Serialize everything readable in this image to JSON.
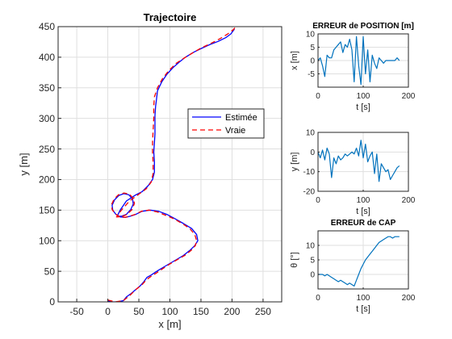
{
  "chart_data": [
    {
      "type": "line",
      "title": "Trajectoire",
      "xlabel": "x [m]",
      "ylabel": "y [m]",
      "xlim": [
        -80,
        280
      ],
      "ylim": [
        0,
        450
      ],
      "xticks": [
        -50,
        0,
        50,
        100,
        150,
        200,
        250
      ],
      "yticks": [
        0,
        50,
        100,
        150,
        200,
        250,
        300,
        350,
        400,
        450
      ],
      "grid": true,
      "legend": "right",
      "series": [
        {
          "name": "Estimée",
          "color": "#0000ff",
          "style": "solid",
          "points": [
            [
              0,
              2
            ],
            [
              5,
              0
            ],
            [
              15,
              0
            ],
            [
              25,
              2
            ],
            [
              30,
              8
            ],
            [
              38,
              14
            ],
            [
              45,
              20
            ],
            [
              52,
              26
            ],
            [
              58,
              33
            ],
            [
              63,
              40
            ],
            [
              70,
              44
            ],
            [
              76,
              48
            ],
            [
              82,
              52
            ],
            [
              92,
              58
            ],
            [
              102,
              64
            ],
            [
              112,
              70
            ],
            [
              122,
              76
            ],
            [
              132,
              84
            ],
            [
              140,
              92
            ],
            [
              145,
              100
            ],
            [
              143,
              110
            ],
            [
              135,
              120
            ],
            [
              122,
              128
            ],
            [
              108,
              136
            ],
            [
              95,
              143
            ],
            [
              82,
              148
            ],
            [
              68,
              150
            ],
            [
              55,
              148
            ],
            [
              45,
              143
            ],
            [
              36,
              140
            ],
            [
              28,
              138
            ],
            [
              20,
              139
            ],
            [
              13,
              143
            ],
            [
              8,
              150
            ],
            [
              7,
              158
            ],
            [
              11,
              167
            ],
            [
              18,
              174
            ],
            [
              26,
              177
            ],
            [
              34,
              175
            ],
            [
              40,
              168
            ],
            [
              41,
              160
            ],
            [
              37,
              151
            ],
            [
              30,
              143
            ],
            [
              22,
              140
            ],
            [
              15,
              140
            ],
            [
              20,
              150
            ],
            [
              30,
              165
            ],
            [
              45,
              175
            ],
            [
              55,
              180
            ],
            [
              65,
              190
            ],
            [
              72,
              200
            ],
            [
              75,
              212
            ],
            [
              75,
              230
            ],
            [
              74,
              245
            ],
            [
              75,
              260
            ],
            [
              76,
              275
            ],
            [
              76,
              290
            ],
            [
              76,
              305
            ],
            [
              77,
              320
            ],
            [
              78,
              328
            ],
            [
              80,
              345
            ],
            [
              87,
              360
            ],
            [
              95,
              372
            ],
            [
              105,
              383
            ],
            [
              115,
              392
            ],
            [
              125,
              400
            ],
            [
              138,
              408
            ],
            [
              152,
              415
            ],
            [
              165,
              421
            ],
            [
              178,
              426
            ],
            [
              190,
              432
            ],
            [
              198,
              438
            ],
            [
              204,
              446
            ]
          ]
        },
        {
          "name": "Vraie",
          "color": "#ff0000",
          "style": "dashed",
          "points": [
            [
              0,
              3
            ],
            [
              12,
              0
            ],
            [
              25,
              2
            ],
            [
              35,
              10
            ],
            [
              45,
              20
            ],
            [
              55,
              28
            ],
            [
              62,
              36
            ],
            [
              70,
              42
            ],
            [
              78,
              47
            ],
            [
              88,
              54
            ],
            [
              100,
              62
            ],
            [
              112,
              69
            ],
            [
              124,
              76
            ],
            [
              134,
              84
            ],
            [
              141,
              92
            ],
            [
              143,
              100
            ],
            [
              140,
              110
            ],
            [
              132,
              120
            ],
            [
              120,
              128
            ],
            [
              106,
              136
            ],
            [
              92,
              142
            ],
            [
              80,
              147
            ],
            [
              66,
              150
            ],
            [
              54,
              148
            ],
            [
              44,
              143
            ],
            [
              35,
              140
            ],
            [
              27,
              138
            ],
            [
              19,
              139
            ],
            [
              12,
              144
            ],
            [
              7,
              151
            ],
            [
              6,
              159
            ],
            [
              10,
              168
            ],
            [
              17,
              175
            ],
            [
              26,
              178
            ],
            [
              35,
              176
            ],
            [
              41,
              169
            ],
            [
              43,
              161
            ],
            [
              39,
              151
            ],
            [
              31,
              143
            ],
            [
              22,
              139
            ],
            [
              14,
              139
            ],
            [
              22,
              150
            ],
            [
              35,
              165
            ],
            [
              50,
              176
            ],
            [
              62,
              185
            ],
            [
              70,
              196
            ],
            [
              73,
              210
            ],
            [
              73,
              228
            ],
            [
              72,
              245
            ],
            [
              72,
              262
            ],
            [
              73,
              280
            ],
            [
              74,
              300
            ],
            [
              74,
              320
            ],
            [
              75,
              335
            ],
            [
              80,
              350
            ],
            [
              88,
              365
            ],
            [
              98,
              378
            ],
            [
              110,
              390
            ],
            [
              122,
              398
            ],
            [
              135,
              406
            ],
            [
              150,
              415
            ],
            [
              165,
              422
            ],
            [
              180,
              430
            ],
            [
              193,
              438
            ],
            [
              202,
              445
            ],
            [
              207,
              451
            ]
          ]
        }
      ]
    },
    {
      "type": "line",
      "title": "ERREUR de POSITION [m]",
      "xlabel": "t [s]",
      "ylabel": "x [m]",
      "xlim": [
        0,
        200
      ],
      "ylim": [
        -10,
        10
      ],
      "xticks": [
        0,
        100,
        200
      ],
      "yticks": [
        -5,
        0,
        5,
        10
      ],
      "grid": true,
      "series": [
        {
          "color": "#0072bd",
          "t": [
            0,
            5,
            10,
            15,
            20,
            25,
            30,
            35,
            40,
            45,
            50,
            55,
            60,
            65,
            70,
            75,
            80,
            85,
            90,
            95,
            100,
            105,
            110,
            115,
            120,
            125,
            130,
            135,
            140,
            145,
            150,
            155,
            160,
            165,
            170,
            175,
            180
          ],
          "values": [
            0,
            1,
            -2,
            -6,
            2,
            1,
            1,
            4,
            5,
            6,
            7,
            3,
            6,
            5,
            8,
            4,
            -8,
            9,
            -2,
            -9,
            9,
            -5,
            4,
            -8,
            2,
            -1,
            -3,
            1,
            0,
            -1,
            0,
            0,
            0,
            0,
            0,
            1,
            0
          ]
        }
      ]
    },
    {
      "type": "line",
      "title": "",
      "xlabel": "t [s]",
      "ylabel": "y [m]",
      "xlim": [
        0,
        200
      ],
      "ylim": [
        -20,
        10
      ],
      "xticks": [
        0,
        100,
        200
      ],
      "yticks": [
        -20,
        -10,
        0,
        10
      ],
      "grid": true,
      "series": [
        {
          "color": "#0072bd",
          "t": [
            0,
            5,
            10,
            15,
            20,
            25,
            30,
            35,
            40,
            45,
            50,
            55,
            60,
            65,
            70,
            75,
            80,
            85,
            90,
            95,
            100,
            105,
            110,
            115,
            120,
            125,
            130,
            135,
            140,
            145,
            150,
            155,
            160,
            165,
            170,
            175,
            180
          ],
          "values": [
            0,
            -3,
            1,
            -4,
            2,
            -1,
            -13,
            -3,
            -6,
            -2,
            -4,
            -3,
            -1,
            -2,
            -1,
            0,
            -1,
            2,
            -2,
            6,
            -3,
            4,
            -5,
            -2,
            0,
            -11,
            -1,
            -15,
            -6,
            -8,
            -10,
            -9,
            -14,
            -12,
            -10,
            -8,
            -7
          ]
        }
      ]
    },
    {
      "type": "line",
      "title": "ERREUR de CAP",
      "xlabel": "t [s]",
      "ylabel": "θ [°]",
      "xlim": [
        0,
        200
      ],
      "ylim": [
        -5,
        15
      ],
      "xticks": [
        0,
        100,
        200
      ],
      "yticks": [
        0,
        5,
        10
      ],
      "grid": true,
      "series": [
        {
          "color": "#0072bd",
          "t": [
            0,
            5,
            10,
            15,
            20,
            25,
            30,
            35,
            40,
            45,
            50,
            55,
            60,
            65,
            70,
            75,
            80,
            85,
            90,
            95,
            100,
            105,
            110,
            115,
            120,
            125,
            130,
            135,
            140,
            145,
            150,
            155,
            160,
            165,
            170,
            175,
            180
          ],
          "values": [
            0,
            0,
            0,
            -0.5,
            0,
            -0.5,
            -1,
            -1.5,
            -2,
            -2.5,
            -2,
            -2.5,
            -3,
            -3.5,
            -3,
            -3.5,
            -4,
            -2,
            0,
            2,
            3.5,
            5,
            6,
            7,
            8,
            9,
            10,
            11,
            11.5,
            12,
            12.5,
            13,
            13,
            12.5,
            13,
            13,
            13
          ]
        }
      ]
    }
  ]
}
